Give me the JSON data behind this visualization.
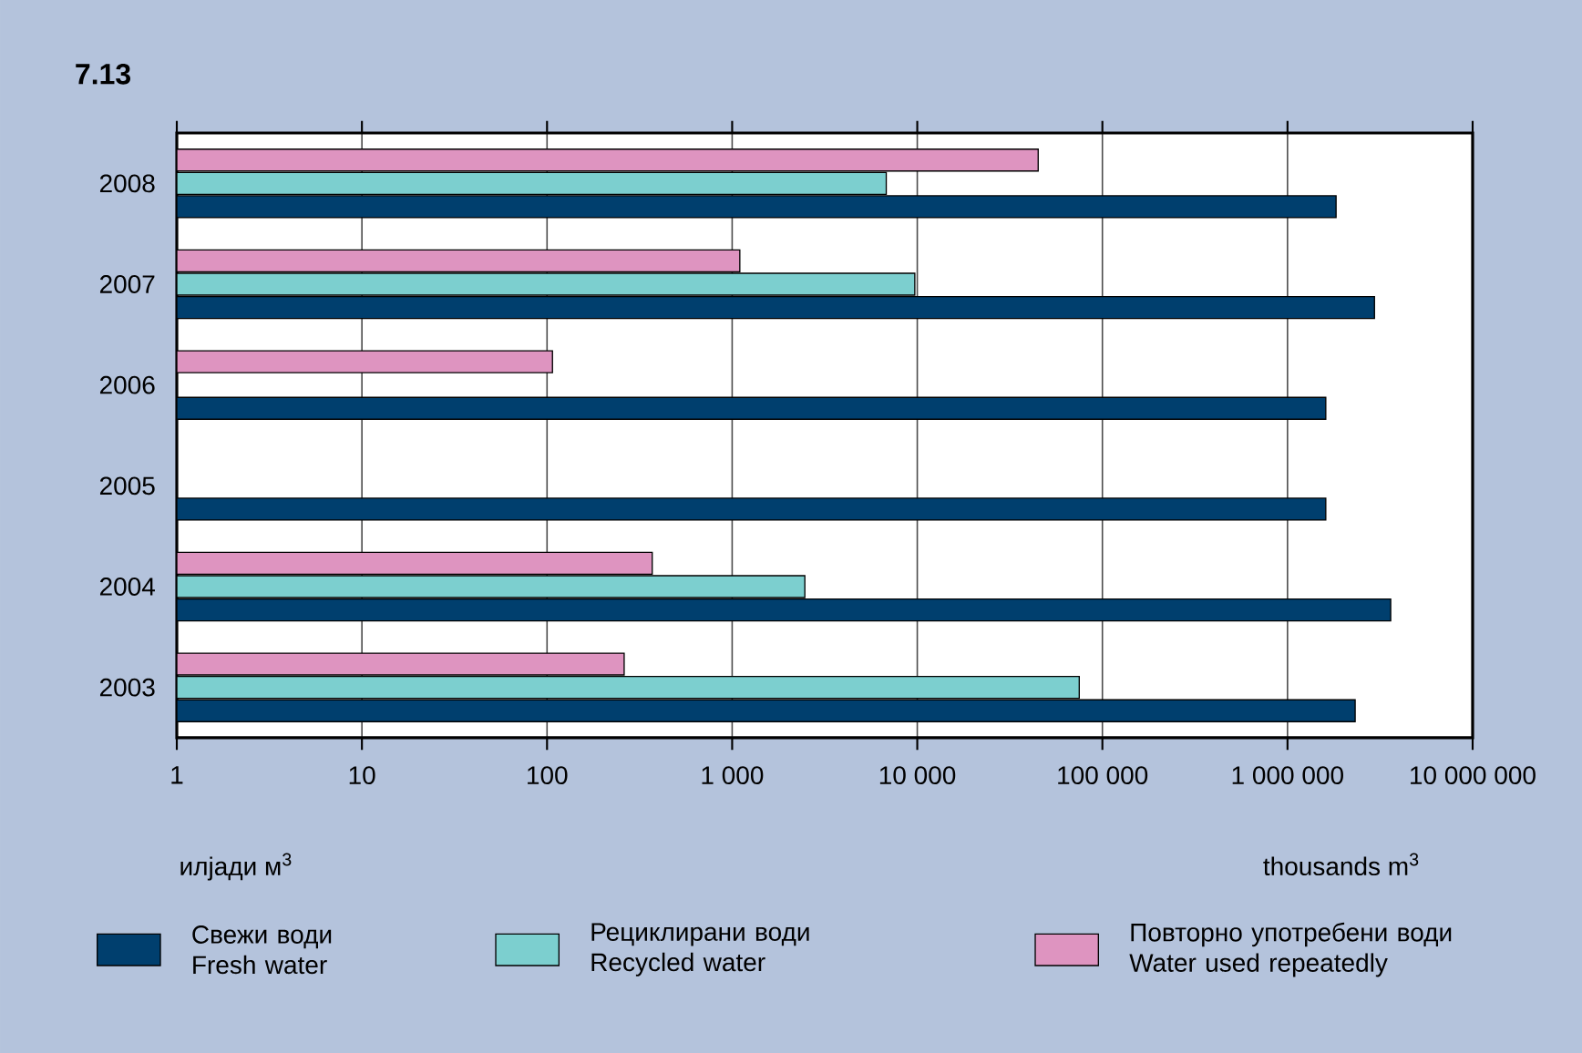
{
  "chart_data": {
    "type": "bar",
    "orientation": "horizontal",
    "title": "7.13",
    "xlabel": "thousands m$^{3}$",
    "annotations": [
      "илјади м$^{3}$"
    ],
    "categories": [
      "2008",
      "2007",
      "2006",
      "2005",
      "2004",
      "2003"
    ],
    "series": [
      {
        "name": "Свежи води Fresh water",
        "color": "#003f6e",
        "values": [
          1830000,
          2950000,
          1610000,
          1610000,
          3610000,
          2320000
        ]
      },
      {
        "name": "Рециклирани води Recycled water",
        "color": "#7ccfcf",
        "values": [
          6800,
          9700,
          null,
          null,
          2470,
          75000
        ]
      },
      {
        "name": "Повторно употребени води Water used repeatedly",
        "color": "#de94c0",
        "values": [
          45000,
          1100,
          107,
          null,
          370,
          261
        ]
      }
    ],
    "log": "x",
    "xlim": [
      1,
      10000000
    ],
    "xticks": [
      1,
      10,
      100,
      {
        "value": 1000,
        "label": "1 000"
      },
      {
        "value": 10000,
        "label": "10 000"
      },
      {
        "value": 100000,
        "label": "100 000"
      },
      {
        "value": 1000000,
        "label": "1 000 000"
      },
      {
        "value": 10000000,
        "label": "10 000 000"
      }
    ],
    "grid": "x",
    "legend": "bottom"
  }
}
